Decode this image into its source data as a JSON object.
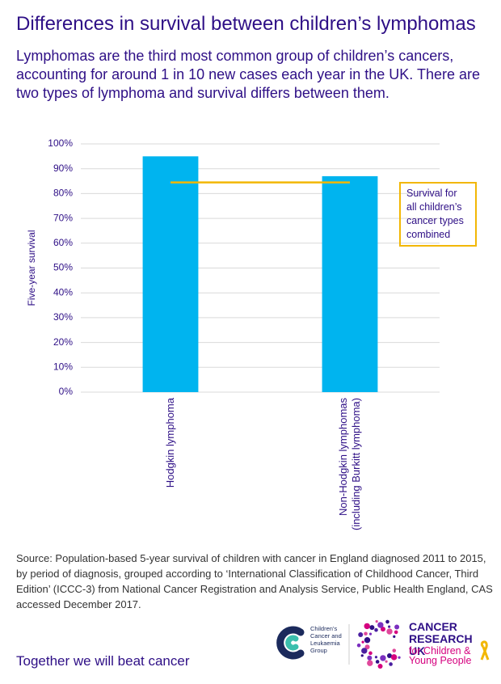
{
  "chart_data": {
    "type": "bar",
    "title": "Differences in survival between children’s lymphomas",
    "subtitle": "Lymphomas are the third most common group of children’s cancers, accounting for around 1 in 10 new cases each year in the UK. There are two types of lymphoma and survival differs between them.",
    "y_label": "Five-year survival",
    "categories": [
      "Hodgkin lymphoma",
      "Non-Hodgkin lymphomas (including Burkitt lymphoma)"
    ],
    "values": [
      95,
      87
    ],
    "color": "#00b4ef",
    "ylim": [
      0,
      100
    ],
    "yticks": [
      {
        "value": 0,
        "label": "0%"
      },
      {
        "value": 10,
        "label": "10%"
      },
      {
        "value": 20,
        "label": "20%"
      },
      {
        "value": 30,
        "label": "30%"
      },
      {
        "value": 40,
        "label": "40%"
      },
      {
        "value": 50,
        "label": "50%"
      },
      {
        "value": 60,
        "label": "60%"
      },
      {
        "value": 70,
        "label": "70%"
      },
      {
        "value": 80,
        "label": "80%"
      },
      {
        "value": 90,
        "label": "90%"
      },
      {
        "value": 100,
        "label": "100%"
      }
    ],
    "grid": true,
    "reference_line": {
      "value": 84.5,
      "color": "#f2b705",
      "label": "Survival for all children’s cancer types combined"
    },
    "source": "Source: Population-based 5-year survival of children with cancer in England diagnosed 2011 to 2015, by period of diagnosis, grouped according to ‘International Classification of Childhood Cancer, Third Edition’ (ICCC-3) from National Cancer Registration and Analysis Service, Public Health England, CAS accessed December 2017.",
    "footer": "Together we will beat cancer",
    "logos": {
      "cclg": "Children’s Cancer and Leukaemia Group",
      "cruk_name": "CANCER RESEARCH UK",
      "cruk_tagline": "for Children & Young People"
    }
  }
}
